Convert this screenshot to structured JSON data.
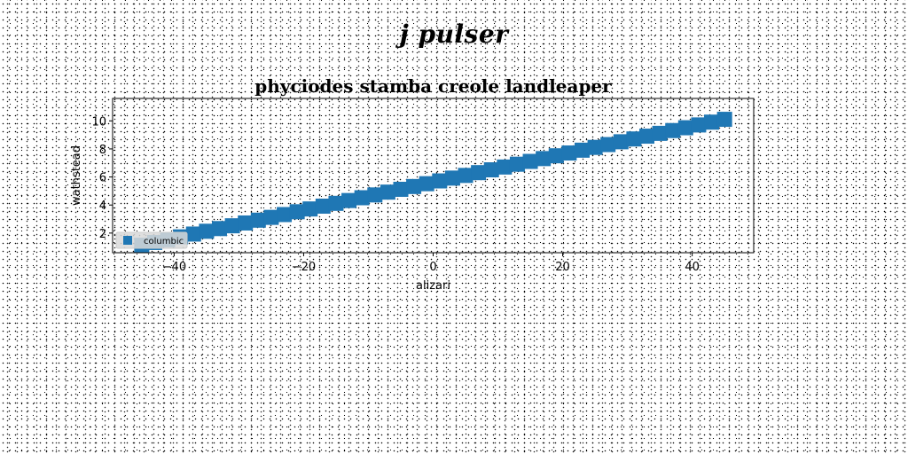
{
  "suptitle": "j pulser",
  "chart_data": {
    "type": "scatter",
    "title": "phyciodes stamba creole landleaper",
    "xlabel": "alizari",
    "ylabel": "wathstead",
    "xlim": [
      -49.5,
      49.5
    ],
    "ylim": [
      0.6,
      11.6
    ],
    "xticks": [
      -40,
      -20,
      0,
      20,
      40
    ],
    "xtick_labels": [
      "−40",
      "−20",
      "0",
      "20",
      "40"
    ],
    "yticks": [
      2,
      4,
      6,
      8,
      10
    ],
    "ytick_labels": [
      "2",
      "4",
      "6",
      "8",
      "10"
    ],
    "grid": false,
    "legend_position": "lower-left",
    "marker": "square",
    "color": "#1f77b4",
    "series": [
      {
        "name": "columbic",
        "x": [
          -45,
          -43,
          -41,
          -39,
          -37,
          -35,
          -33,
          -31,
          -29,
          -27,
          -25,
          -23,
          -21,
          -19,
          -17,
          -15,
          -13,
          -11,
          -9,
          -7,
          -5,
          -3,
          -1,
          1,
          3,
          5,
          7,
          9,
          11,
          13,
          15,
          17,
          19,
          21,
          23,
          25,
          27,
          29,
          31,
          33,
          35,
          37,
          39,
          41,
          43,
          45
        ],
        "y": [
          1.13,
          1.33,
          1.53,
          1.73,
          1.93,
          2.13,
          2.32,
          2.52,
          2.72,
          2.92,
          3.12,
          3.32,
          3.52,
          3.72,
          3.92,
          4.12,
          4.32,
          4.52,
          4.72,
          4.92,
          5.12,
          5.32,
          5.52,
          5.72,
          5.92,
          6.11,
          6.31,
          6.51,
          6.71,
          6.91,
          7.11,
          7.31,
          7.51,
          7.71,
          7.91,
          8.11,
          8.31,
          8.51,
          8.71,
          8.91,
          9.11,
          9.31,
          9.51,
          9.71,
          9.91,
          10.11
        ]
      }
    ]
  }
}
